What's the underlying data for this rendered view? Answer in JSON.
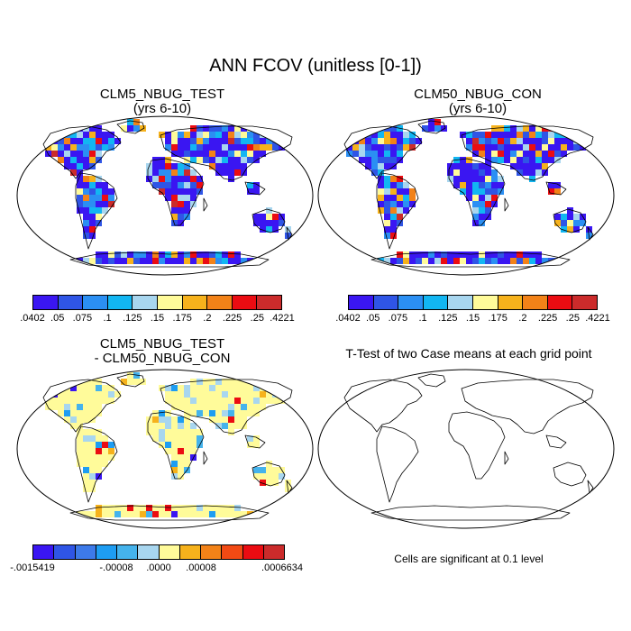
{
  "title": "ANN FCOV (unitless [0-1])",
  "panels": [
    {
      "title_line1": "CLM5_NBUG_TEST",
      "title_line2": "(yrs 6-10)"
    },
    {
      "title_line1": "CLM50_NBUG_CON",
      "title_line2": "(yrs 6-10)"
    },
    {
      "title_line1": "CLM5_NBUG_TEST",
      "title_line2": "- CLM50_NBUG_CON"
    },
    {
      "title_line1": "T-Test of two Case means at each grid point"
    }
  ],
  "colorbar_main": {
    "labels": [
      ".0402",
      ".05",
      ".075",
      ".1",
      ".125",
      ".15",
      ".175",
      ".2",
      ".225",
      ".25",
      ".4221"
    ],
    "colors": [
      "#3a16f2",
      "#2f55e6",
      "#2b8ff3",
      "#12b6f2",
      "#a8d6ef",
      "#fffb9a",
      "#f6b21c",
      "#f28218",
      "#eb0c12",
      "#cb2b2b"
    ]
  },
  "colorbar_diff": {
    "labels": [
      "-.0015419",
      "-.00008",
      ".0000",
      ".00008",
      ".0006634"
    ],
    "colors": [
      "#3a16f2",
      "#2f55e6",
      "#3d7ae9",
      "#1e9df2",
      "#45b3ec",
      "#a8d6ef",
      "#fffb9a",
      "#f6b21c",
      "#f28218",
      "#f24a14",
      "#eb0c12",
      "#cb2b2b"
    ]
  },
  "ttest_note": "Cells are significant at 0.1 level"
}
